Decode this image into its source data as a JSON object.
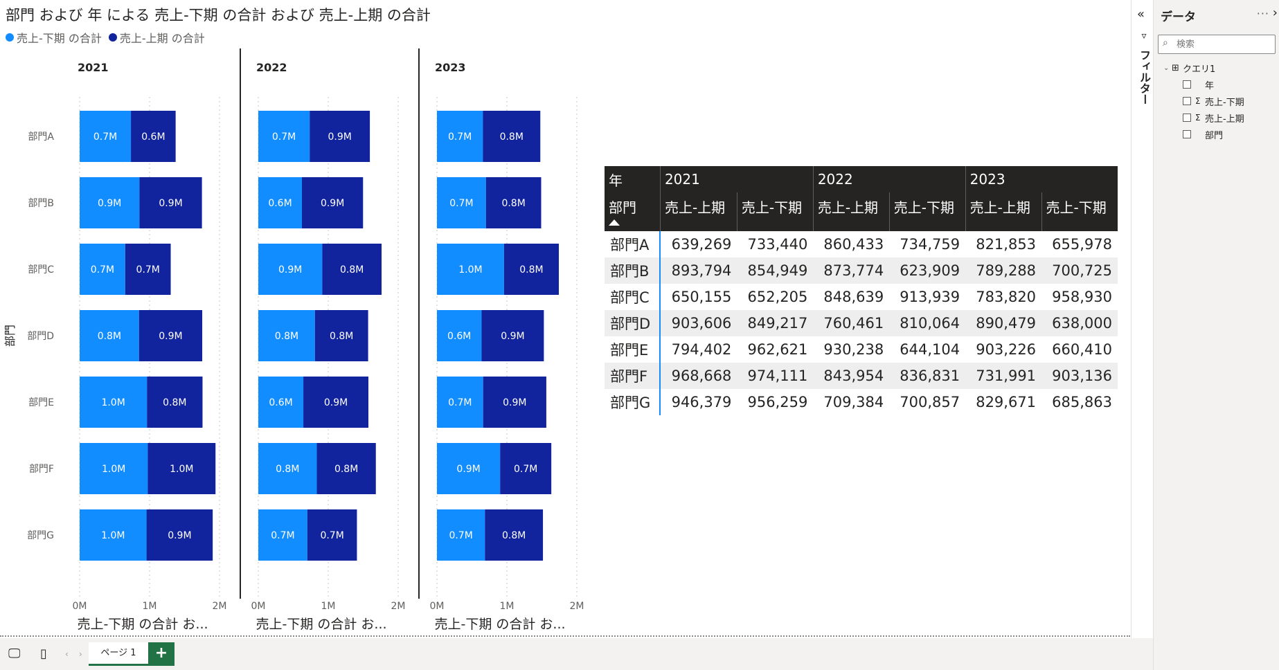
{
  "visual": {
    "title": "部門 および 年 による 売上-下期 の合計 および 売上-上期 の合計",
    "legend": [
      {
        "label": "売上-下期 の合計",
        "color": "#118dff"
      },
      {
        "label": "売上-上期 の合計",
        "color": "#12239e"
      }
    ]
  },
  "chart_data": {
    "type": "bar",
    "orientation": "horizontal",
    "stacked": true,
    "small_multiples_by": "年",
    "ylabel": "部門",
    "xlabel": "売上-下期 の合計 お...",
    "xlim": [
      0,
      2000000
    ],
    "xticks": [
      "0M",
      "1M",
      "2M"
    ],
    "categories": [
      "部門A",
      "部門B",
      "部門C",
      "部門D",
      "部門E",
      "部門F",
      "部門G"
    ],
    "panels": [
      {
        "title": "2021",
        "series": [
          {
            "name": "売上-下期 の合計",
            "values": [
              733440,
              854949,
              652205,
              849217,
              962621,
              974111,
              956259
            ],
            "labels": [
              "0.7M",
              "0.9M",
              "0.7M",
              "0.8M",
              "1.0M",
              "1.0M",
              "1.0M"
            ]
          },
          {
            "name": "売上-上期 の合計",
            "values": [
              639269,
              893794,
              650155,
              903606,
              794402,
              968668,
              946379
            ],
            "labels": [
              "0.6M",
              "0.9M",
              "0.7M",
              "0.9M",
              "0.8M",
              "1.0M",
              "0.9M"
            ]
          }
        ]
      },
      {
        "title": "2022",
        "series": [
          {
            "name": "売上-下期 の合計",
            "values": [
              734759,
              623909,
              913939,
              810064,
              644104,
              836831,
              700857
            ],
            "labels": [
              "0.7M",
              "0.6M",
              "0.9M",
              "0.8M",
              "0.6M",
              "0.8M",
              "0.7M"
            ]
          },
          {
            "name": "売上-上期 の合計",
            "values": [
              860433,
              873774,
              848639,
              760461,
              930238,
              843954,
              709384
            ],
            "labels": [
              "0.9M",
              "0.9M",
              "0.8M",
              "0.8M",
              "0.9M",
              "0.8M",
              "0.7M"
            ]
          }
        ]
      },
      {
        "title": "2023",
        "series": [
          {
            "name": "売上-下期 の合計",
            "values": [
              655978,
              700725,
              958930,
              638000,
              660410,
              903136,
              685863
            ],
            "labels": [
              "0.7M",
              "0.7M",
              "1.0M",
              "0.6M",
              "0.7M",
              "0.9M",
              "0.7M"
            ]
          },
          {
            "name": "売上-上期 の合計",
            "values": [
              821853,
              789288,
              783820,
              890479,
              903226,
              731991,
              829671
            ],
            "labels": [
              "0.8M",
              "0.8M",
              "0.8M",
              "0.9M",
              "0.9M",
              "0.7M",
              "0.8M"
            ]
          }
        ]
      }
    ]
  },
  "matrix": {
    "corner_label": "年",
    "row_header_label": "部門",
    "years": [
      "2021",
      "2022",
      "2023"
    ],
    "measures": [
      "売上-上期",
      "売上-下期"
    ],
    "rows": [
      {
        "label": "部門A",
        "values": [
          "639,269",
          "733,440",
          "860,433",
          "734,759",
          "821,853",
          "655,978"
        ]
      },
      {
        "label": "部門B",
        "values": [
          "893,794",
          "854,949",
          "873,774",
          "623,909",
          "789,288",
          "700,725"
        ]
      },
      {
        "label": "部門C",
        "values": [
          "650,155",
          "652,205",
          "848,639",
          "913,939",
          "783,820",
          "958,930"
        ]
      },
      {
        "label": "部門D",
        "values": [
          "903,606",
          "849,217",
          "760,461",
          "810,064",
          "890,479",
          "638,000"
        ]
      },
      {
        "label": "部門E",
        "values": [
          "794,402",
          "962,621",
          "930,238",
          "644,104",
          "903,226",
          "660,410"
        ]
      },
      {
        "label": "部門F",
        "values": [
          "968,668",
          "974,111",
          "843,954",
          "836,831",
          "731,991",
          "903,136"
        ]
      },
      {
        "label": "部門G",
        "values": [
          "946,379",
          "956,259",
          "709,384",
          "700,857",
          "829,671",
          "685,863"
        ]
      }
    ]
  },
  "filters_pane": {
    "label": "フィルター"
  },
  "data_pane": {
    "title": "データ",
    "more": "···",
    "search_placeholder": "検索",
    "table_name": "クエリ1",
    "fields": [
      {
        "name": "年",
        "sigma": false
      },
      {
        "name": "売上-下期",
        "sigma": true
      },
      {
        "name": "売上-上期",
        "sigma": true
      },
      {
        "name": "部門",
        "sigma": false
      }
    ]
  },
  "pages": {
    "tabs": [
      "ページ 1"
    ],
    "add_label": "+"
  }
}
